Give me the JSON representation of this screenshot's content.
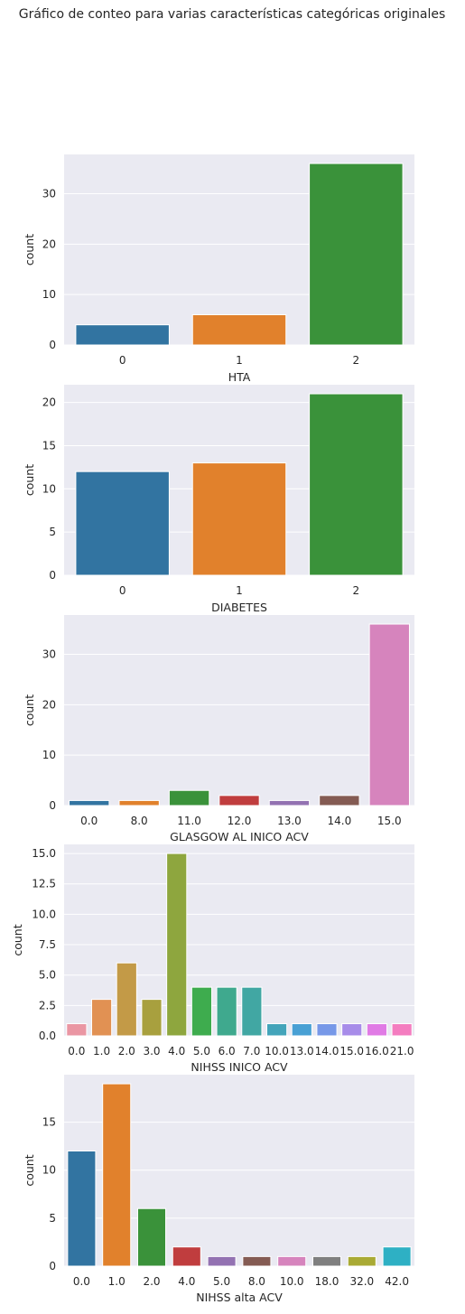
{
  "figure": {
    "title": "Gráfico de conteo para varias características categóricas originales"
  },
  "colors": {
    "plot_background": "#eaeaf2",
    "grid": "#ffffff",
    "palette10": [
      "#3274a1",
      "#e1812c",
      "#3a923a",
      "#c03d3e",
      "#9372b2",
      "#845b53",
      "#d684bd",
      "#7f7f7f",
      "#a9aa35",
      "#2eb0c4"
    ],
    "nihss_inico_palette": [
      "#ea96a3",
      "#e19153",
      "#c39a47",
      "#a8a03e",
      "#8ea63e",
      "#3eac4e",
      "#3fa98e",
      "#41a7a3",
      "#43a4ba",
      "#48a0d4",
      "#7798e8",
      "#a78ce9",
      "#e07be5",
      "#f47dc0"
    ]
  },
  "chart_data": [
    {
      "type": "bar",
      "xlabel": "HTA",
      "ylabel": "count",
      "categories": [
        "0",
        "1",
        "2"
      ],
      "values": [
        4,
        6,
        36
      ],
      "ylim": [
        0,
        37.8
      ],
      "yticks": [
        0,
        10,
        20,
        30
      ],
      "ytick_labels": [
        "0",
        "10",
        "20",
        "30"
      ],
      "colors": [
        "#3274a1",
        "#e1812c",
        "#3a923a"
      ],
      "grid": true
    },
    {
      "type": "bar",
      "xlabel": "DIABETES",
      "ylabel": "count",
      "categories": [
        "0",
        "1",
        "2"
      ],
      "values": [
        12,
        13,
        21
      ],
      "ylim": [
        0,
        22.05
      ],
      "yticks": [
        0,
        5,
        10,
        15,
        20
      ],
      "ytick_labels": [
        "0",
        "5",
        "10",
        "15",
        "20"
      ],
      "colors": [
        "#3274a1",
        "#e1812c",
        "#3a923a"
      ],
      "grid": true
    },
    {
      "type": "bar",
      "xlabel": "GLASGOW AL INICO ACV",
      "ylabel": "count",
      "categories": [
        "0.0",
        "8.0",
        "11.0",
        "12.0",
        "13.0",
        "14.0",
        "15.0"
      ],
      "values": [
        1,
        1,
        3,
        2,
        1,
        2,
        36
      ],
      "ylim": [
        0,
        37.8
      ],
      "yticks": [
        0,
        10,
        20,
        30
      ],
      "ytick_labels": [
        "0",
        "10",
        "20",
        "30"
      ],
      "colors": [
        "#3274a1",
        "#e1812c",
        "#3a923a",
        "#c03d3e",
        "#9372b2",
        "#845b53",
        "#d684bd"
      ],
      "grid": true
    },
    {
      "type": "bar",
      "xlabel": "NIHSS INICO ACV",
      "ylabel": "count",
      "categories": [
        "0.0",
        "1.0",
        "2.0",
        "3.0",
        "4.0",
        "5.0",
        "6.0",
        "7.0",
        "10.0",
        "13.0",
        "14.0",
        "15.0",
        "16.0",
        "21.0"
      ],
      "values": [
        1,
        3,
        6,
        3,
        15,
        4,
        4,
        4,
        1,
        1,
        1,
        1,
        1,
        1
      ],
      "ylim": [
        0,
        15.75
      ],
      "yticks": [
        0,
        2.5,
        5,
        7.5,
        10,
        12.5,
        15
      ],
      "ytick_labels": [
        "0.0",
        "2.5",
        "5.0",
        "7.5",
        "10.0",
        "12.5",
        "15.0"
      ],
      "colors": [
        "#ea96a3",
        "#e19153",
        "#c39a47",
        "#a8a03e",
        "#8ea63e",
        "#3eac4e",
        "#3fa98e",
        "#41a7a3",
        "#43a4ba",
        "#48a0d4",
        "#7798e8",
        "#a78ce9",
        "#e07be5",
        "#f47dc0"
      ],
      "grid": true
    },
    {
      "type": "bar",
      "xlabel": "NIHSS alta ACV",
      "ylabel": "count",
      "categories": [
        "0.0",
        "1.0",
        "2.0",
        "4.0",
        "5.0",
        "8.0",
        "10.0",
        "18.0",
        "32.0",
        "42.0"
      ],
      "values": [
        12,
        19,
        6,
        2,
        1,
        1,
        1,
        1,
        1,
        2
      ],
      "ylim": [
        0,
        19.95
      ],
      "yticks": [
        0,
        5,
        10,
        15
      ],
      "ytick_labels": [
        "0",
        "5",
        "10",
        "15"
      ],
      "colors": [
        "#3274a1",
        "#e1812c",
        "#3a923a",
        "#c03d3e",
        "#9372b2",
        "#845b53",
        "#d684bd",
        "#7f7f7f",
        "#a9aa35",
        "#2eb0c4"
      ],
      "grid": true
    }
  ]
}
